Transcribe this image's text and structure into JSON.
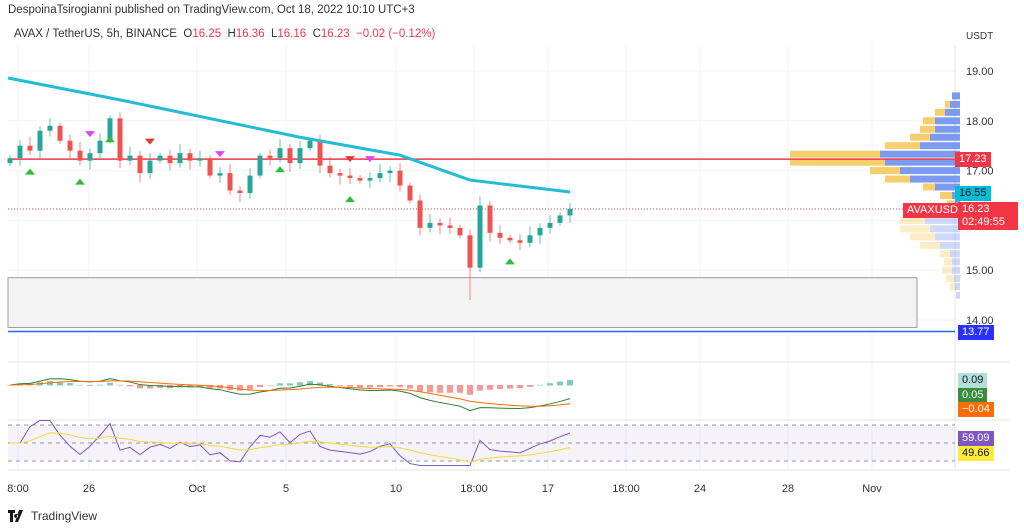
{
  "header": {
    "published": "DespoinaTsirogianni published on TradingView.com, Oct 18, 2022 10:10 UTC+3",
    "symbol": "AVAX / TetherUS, 5h, BINANCE",
    "o_label": "O",
    "o": "16.25",
    "h_label": "H",
    "h": "16.36",
    "l_label": "L",
    "l": "16.16",
    "c_label": "C",
    "c": "16.23",
    "change": "−0.02 (−0.12%)"
  },
  "price_axis": {
    "currency": "USDT",
    "ticks": [
      "19.00",
      "18.00",
      "17.00",
      "15.00",
      "14.00"
    ]
  },
  "time_axis": [
    "8:00",
    "26",
    "Oct",
    "5",
    "10",
    "18:00",
    "17",
    "18:00",
    "24",
    "28",
    "Nov"
  ],
  "tags": {
    "resistance": "17.23",
    "ma": "16.55",
    "symbol_tag": "AVAXUSDT",
    "last_price": "16.23",
    "countdown": "02:49:55",
    "support": "13.77",
    "macd_hist": "0.09",
    "macd": "0.05",
    "macd_signal": "−0.04",
    "rsi": "59.09",
    "rsi_ma": "49.66"
  },
  "colors": {
    "up": "#26a69a",
    "down": "#ef5350",
    "ma": "#22bcd4",
    "resistance": "#f23645",
    "support": "#2962ff",
    "vp_up": "#6f8ff0",
    "vp_down": "#f7c95c",
    "rsi": "#7e57c2",
    "rsi_ma": "#f5e03b"
  },
  "chart_data": {
    "type": "candlestick",
    "closes": [
      17.25,
      17.5,
      17.4,
      17.8,
      17.9,
      17.6,
      17.4,
      17.2,
      17.35,
      17.6,
      18.05,
      17.2,
      17.3,
      16.95,
      17.2,
      17.3,
      17.15,
      17.35,
      17.2,
      17.25,
      16.9,
      16.95,
      16.6,
      16.55,
      16.9,
      17.3,
      17.25,
      17.45,
      17.15,
      17.45,
      17.6,
      17.1,
      16.95,
      16.9,
      16.85,
      16.8,
      16.85,
      16.95,
      17.0,
      16.7,
      16.4,
      15.85,
      15.95,
      15.9,
      15.85,
      15.7,
      15.05,
      16.3,
      15.75,
      15.65,
      15.6,
      15.55,
      15.7,
      15.85,
      15.95,
      16.1,
      16.23
    ],
    "ma": [
      [
        0,
        18.86
      ],
      [
        11,
        18.42
      ],
      [
        29,
        17.67
      ],
      [
        39,
        17.31
      ],
      [
        46,
        16.81
      ],
      [
        56,
        16.57
      ]
    ],
    "signals": [
      {
        "i": 2,
        "type": "buy"
      },
      {
        "i": 7,
        "type": "buy"
      },
      {
        "i": 10,
        "type": "buy"
      },
      {
        "i": 8,
        "type": "sell-alt"
      },
      {
        "i": 14,
        "type": "sell"
      },
      {
        "i": 21,
        "type": "sell-alt"
      },
      {
        "i": 27,
        "type": "buy"
      },
      {
        "i": 34,
        "type": "sell"
      },
      {
        "i": 34,
        "type": "buy"
      },
      {
        "i": 36,
        "type": "sell-alt"
      },
      {
        "i": 50,
        "type": "buy"
      }
    ],
    "horizontal_lines": [
      {
        "price": 17.23,
        "color": "resistance"
      },
      {
        "price": 13.77,
        "color": "support"
      }
    ],
    "zone": {
      "top": 14.85,
      "bottom": 13.85
    },
    "volume_profile": [
      [
        18.5,
        8,
        0
      ],
      [
        18.33,
        10,
        5
      ],
      [
        18.17,
        15,
        10
      ],
      [
        18.0,
        25,
        12
      ],
      [
        17.83,
        25,
        15
      ],
      [
        17.67,
        30,
        20
      ],
      [
        17.5,
        40,
        35
      ],
      [
        17.33,
        80,
        90
      ],
      [
        17.17,
        75,
        95
      ],
      [
        17.0,
        60,
        30
      ],
      [
        16.83,
        50,
        25
      ],
      [
        16.67,
        25,
        12
      ],
      [
        16.5,
        8,
        12
      ],
      [
        16.33,
        5,
        8
      ],
      [
        16.17,
        30,
        20
      ],
      [
        16.0,
        35,
        25
      ],
      [
        15.83,
        30,
        30
      ],
      [
        15.67,
        25,
        25
      ],
      [
        15.5,
        20,
        20
      ],
      [
        15.33,
        10,
        10
      ],
      [
        15.17,
        8,
        8
      ],
      [
        15.0,
        8,
        10
      ],
      [
        14.83,
        6,
        8
      ],
      [
        14.67,
        5,
        5
      ],
      [
        14.5,
        4,
        0
      ]
    ]
  }
}
